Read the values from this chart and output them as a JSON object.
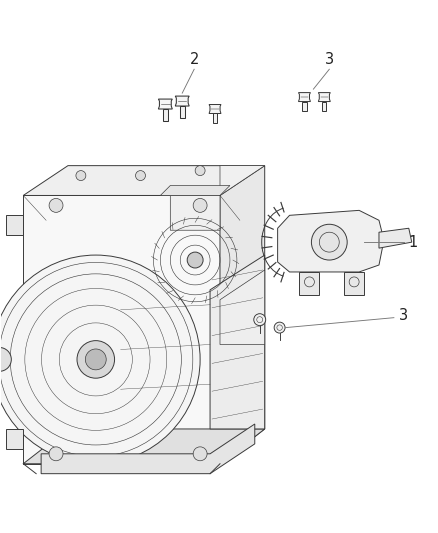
{
  "bg_color": "#ffffff",
  "fig_width": 4.38,
  "fig_height": 5.33,
  "dpi": 100,
  "label_1": "1",
  "label_2": "2",
  "label_3": "3",
  "line_color": "#3a3a3a",
  "text_color": "#222222",
  "font_size": 10.5,
  "leader_color": "#777777"
}
